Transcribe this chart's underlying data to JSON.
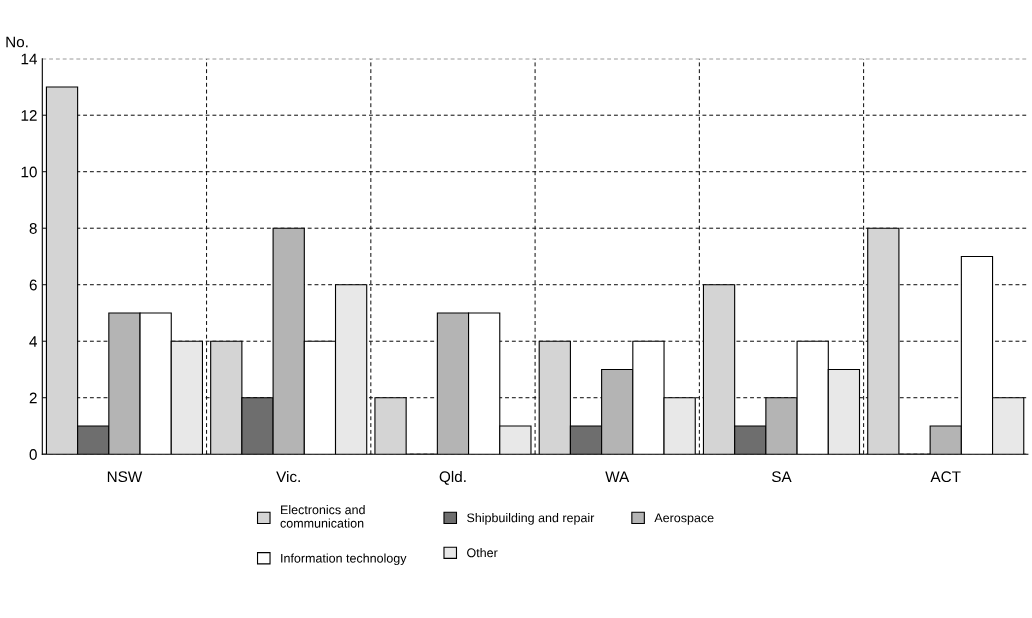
{
  "chart_data": {
    "type": "bar",
    "ylabel": "No.",
    "categories": [
      "NSW",
      "Vic.",
      "Qld.",
      "WA",
      "SA",
      "ACT"
    ],
    "series": [
      {
        "name": "Electronics and\ncommunication",
        "color": "#d4d4d4",
        "values": [
          13,
          4,
          2,
          4,
          6,
          8
        ]
      },
      {
        "name": "Shipbuilding and repair",
        "color": "#6e6e6e",
        "values": [
          1,
          2,
          0,
          1,
          1,
          0
        ]
      },
      {
        "name": "Aerospace",
        "color": "#b4b4b4",
        "values": [
          5,
          8,
          5,
          3,
          2,
          1
        ]
      },
      {
        "name": "Information technology",
        "color": "#ffffff",
        "values": [
          5,
          4,
          5,
          4,
          4,
          7
        ]
      },
      {
        "name": "Other",
        "color": "#e8e8e8",
        "values": [
          4,
          6,
          1,
          2,
          3,
          2
        ]
      }
    ],
    "ylim": [
      0,
      14
    ],
    "yticks": [
      0,
      2,
      4,
      6,
      8,
      10,
      12,
      14
    ],
    "grid": true,
    "legend": "bottom"
  }
}
